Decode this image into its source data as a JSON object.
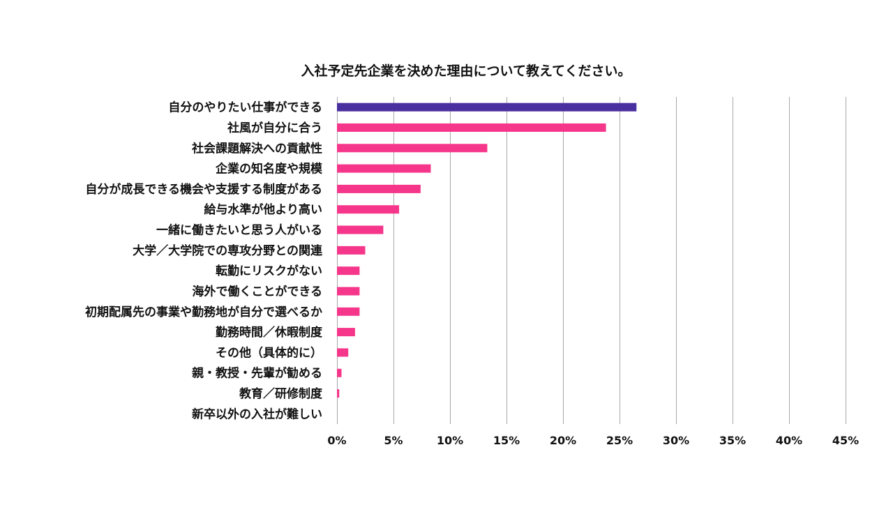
{
  "chart_data": {
    "type": "bar",
    "orientation": "horizontal",
    "title": "入社予定先企業を決めた理由について教えてください。",
    "xlabel": "",
    "ylabel": "",
    "xlim": [
      0,
      45
    ],
    "x_ticks": [
      0,
      5,
      10,
      15,
      20,
      25,
      30,
      35,
      40,
      45
    ],
    "x_tick_labels": [
      "0%",
      "5%",
      "10%",
      "15%",
      "20%",
      "25%",
      "30%",
      "35%",
      "40%",
      "45%"
    ],
    "grid": "vertical",
    "legend": "none",
    "categories": [
      "自分のやりたい仕事ができる",
      "社風が自分に合う",
      "社会課題解決への貢献性",
      "企業の知名度や規模",
      "自分が成長できる機会や支援する制度がある",
      "給与水準が他より高い",
      "一緒に働きたいと思う人がいる",
      "大学／大学院での専攻分野との関連",
      "転勤にリスクがない",
      "海外で働くことができる",
      "初期配属先の事業や勤務地が自分で選べるか",
      "勤務時間／休暇制度",
      "その他（具体的に）",
      "親・教授・先輩が勧める",
      "教育／研修制度",
      "新卒以外の入社が難しい"
    ],
    "values": [
      26.5,
      23.8,
      13.3,
      8.3,
      7.4,
      5.5,
      4.1,
      2.5,
      2.0,
      2.0,
      2.0,
      1.6,
      1.0,
      0.4,
      0.2,
      0.0
    ],
    "colors": {
      "highlight": "#4a2fa0",
      "default": "#f5368a"
    },
    "highlight_index": 0
  }
}
